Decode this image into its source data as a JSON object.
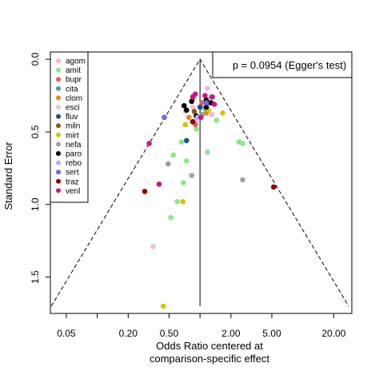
{
  "chart_data": {
    "type": "scatter",
    "subtype": "funnel",
    "title": "",
    "xlabel_line1": "Odds Ratio centered at",
    "xlabel_line2": "comparison-specific effect",
    "ylabel": "Standard Error",
    "x_scale": "log",
    "xlim": [
      0.035,
      30
    ],
    "ylim": [
      1.75,
      -0.05
    ],
    "x_ticks": [
      {
        "value": 0.05,
        "label": "0.05"
      },
      {
        "value": 0.1,
        "label": ""
      },
      {
        "value": 0.2,
        "label": "0.20"
      },
      {
        "value": 0.5,
        "label": "0.50"
      },
      {
        "value": 1,
        "label": ""
      },
      {
        "value": 2,
        "label": "2.00"
      },
      {
        "value": 5,
        "label": "5.00"
      },
      {
        "value": 20,
        "label": "20.00"
      }
    ],
    "y_ticks": [
      {
        "value": 0.0,
        "label": "0.0"
      },
      {
        "value": 0.5,
        "label": "0.5"
      },
      {
        "value": 1.0,
        "label": "1.0"
      },
      {
        "value": 1.5,
        "label": "1.5"
      }
    ],
    "funnel": {
      "center": 1.0,
      "max_se": 1.7,
      "z": 1.96
    },
    "annotation": "p = 0.0954 (Egger's test)",
    "legend_position": "top-left",
    "grid": false,
    "series": [
      {
        "name": "agom",
        "color": "#F4B6D6",
        "points": [
          [
            0.86,
            0.25
          ],
          [
            1.18,
            0.2
          ],
          [
            1.3,
            0.38
          ],
          [
            0.92,
            0.42
          ],
          [
            0.72,
            0.36
          ]
        ]
      },
      {
        "name": "amit",
        "color": "#88E888",
        "points": [
          [
            0.55,
            0.66
          ],
          [
            0.6,
            0.98
          ],
          [
            0.52,
            1.09
          ],
          [
            0.69,
            0.85
          ],
          [
            0.74,
            0.7
          ],
          [
            1.18,
            0.64
          ],
          [
            2.4,
            0.57
          ],
          [
            2.6,
            0.58
          ],
          [
            0.92,
            0.48
          ],
          [
            0.66,
            0.57
          ],
          [
            1.45,
            0.42
          ],
          [
            1.1,
            0.34
          ]
        ]
      },
      {
        "name": "bupr",
        "color": "#E06060",
        "points": [
          [
            0.9,
            0.45
          ],
          [
            1.05,
            0.3
          ]
        ]
      },
      {
        "name": "cita",
        "color": "#3FA0A8",
        "points": [
          [
            1.33,
            0.26
          ],
          [
            1.22,
            0.3
          ]
        ]
      },
      {
        "name": "clom",
        "color": "#E08820",
        "points": [
          [
            1.15,
            0.37
          ],
          [
            0.78,
            0.4
          ]
        ]
      },
      {
        "name": "esci",
        "color": "#F4C0C8",
        "points": [
          [
            0.35,
            1.29
          ],
          [
            0.85,
            0.33
          ]
        ]
      },
      {
        "name": "fluv",
        "color": "#1E4F8F",
        "points": [
          [
            0.74,
            0.56
          ],
          [
            1.0,
            0.33
          ]
        ]
      },
      {
        "name": "miln",
        "color": "#8B5A14",
        "points": [
          [
            0.88,
            0.36
          ]
        ]
      },
      {
        "name": "mirt",
        "color": "#D8C400",
        "points": [
          [
            0.68,
            0.98
          ],
          [
            0.44,
            1.7
          ],
          [
            0.72,
            0.45
          ],
          [
            1.66,
            0.37
          ],
          [
            1.21,
            0.35
          ],
          [
            0.85,
            0.27
          ]
        ]
      },
      {
        "name": "nefa",
        "color": "#A0A0A0",
        "points": [
          [
            2.6,
            0.83
          ],
          [
            0.83,
            0.8
          ],
          [
            0.49,
            0.72
          ],
          [
            1.05,
            0.38
          ]
        ]
      },
      {
        "name": "paro",
        "color": "#000000",
        "points": [
          [
            0.7,
            0.32
          ],
          [
            0.74,
            0.35
          ],
          [
            0.83,
            0.29
          ],
          [
            1.15,
            0.33
          ],
          [
            1.28,
            0.3
          ],
          [
            0.92,
            0.39
          ],
          [
            1.15,
            0.28
          ]
        ]
      },
      {
        "name": "rebo",
        "color": "#A8B8F0",
        "points": [
          [
            0.95,
            0.4
          ]
        ]
      },
      {
        "name": "sert",
        "color": "#6A6AE0",
        "points": [
          [
            0.45,
            0.4
          ],
          [
            1.15,
            0.3
          ]
        ]
      },
      {
        "name": "traz",
        "color": "#8B0000",
        "points": [
          [
            0.29,
            0.91
          ],
          [
            5.2,
            0.88
          ],
          [
            0.85,
            0.43
          ]
        ]
      },
      {
        "name": "venl",
        "color": "#C8168A",
        "points": [
          [
            0.32,
            0.58
          ],
          [
            0.85,
            0.26
          ],
          [
            1.12,
            0.25
          ],
          [
            0.9,
            0.24
          ],
          [
            1.38,
            0.31
          ],
          [
            0.4,
            0.86
          ],
          [
            1.3,
            0.26
          ],
          [
            1.02,
            0.4
          ]
        ]
      }
    ]
  }
}
